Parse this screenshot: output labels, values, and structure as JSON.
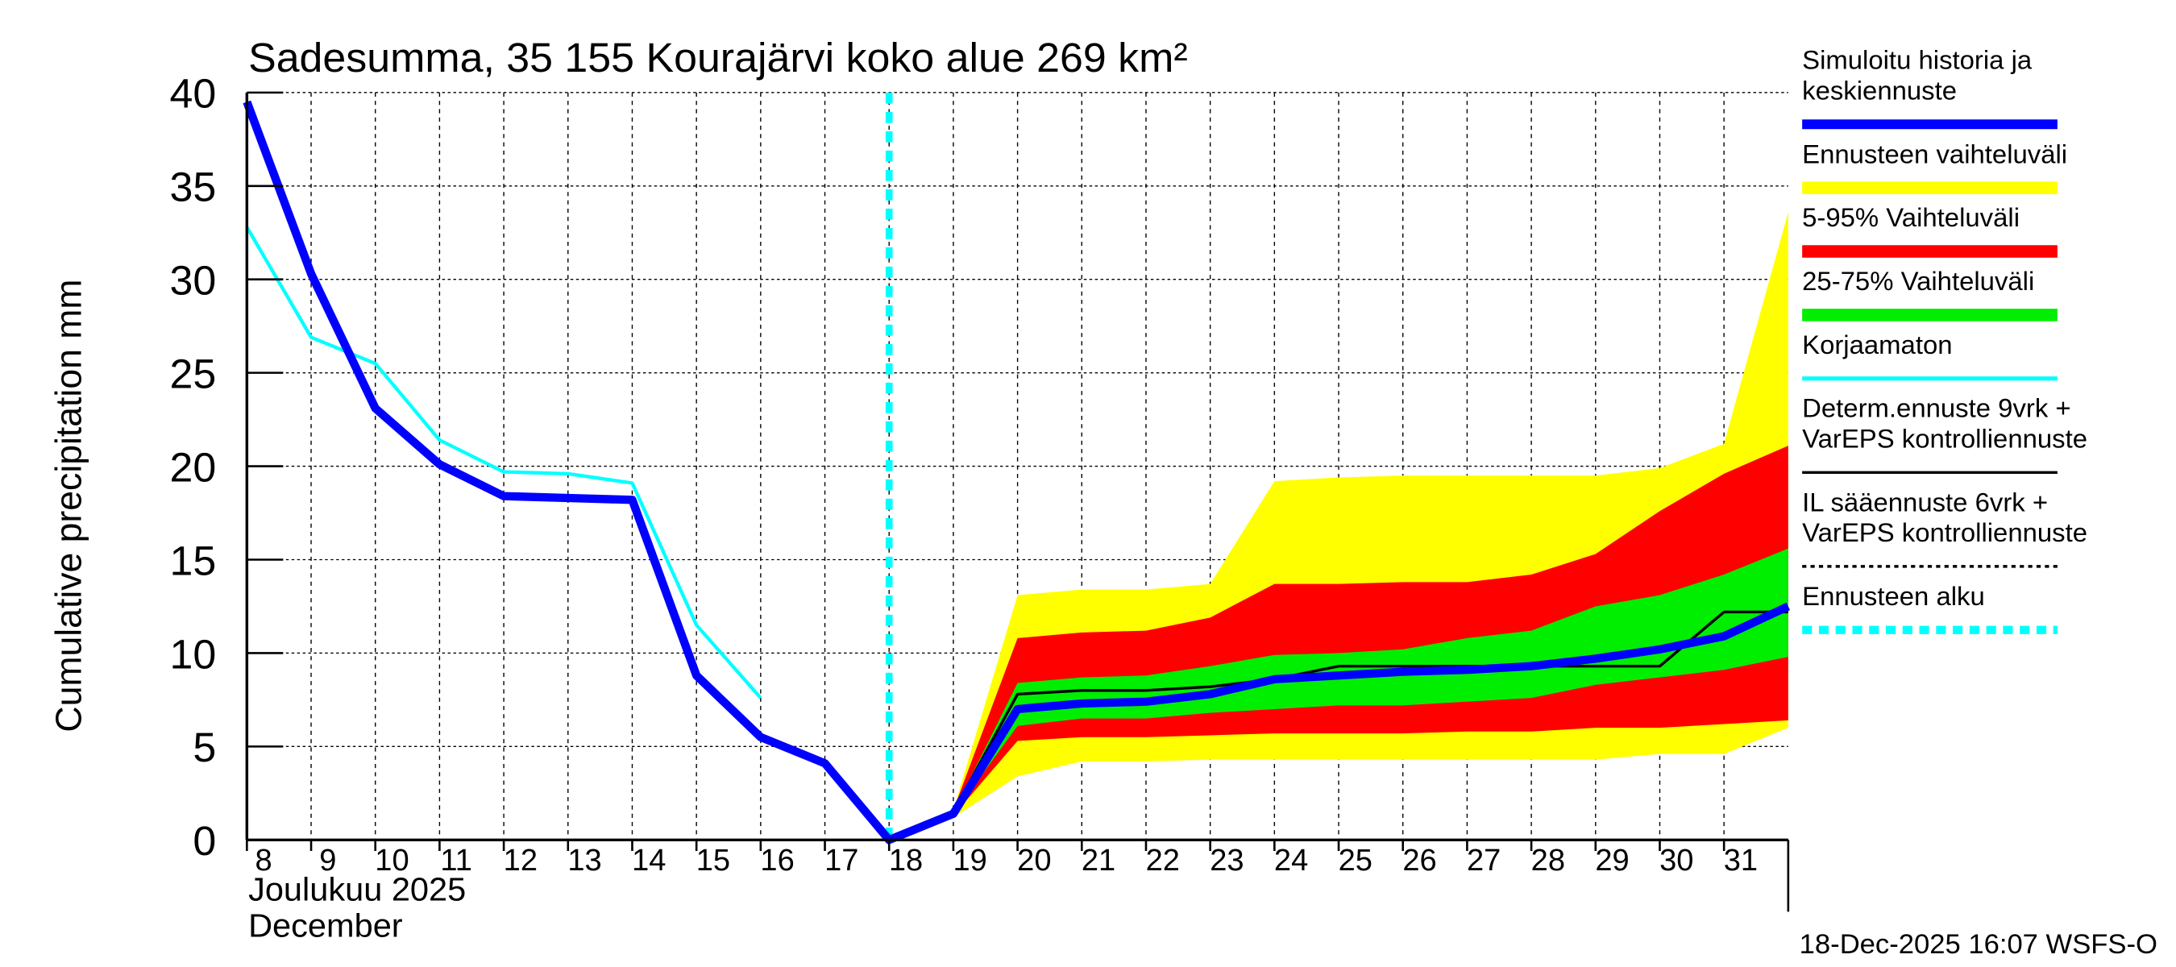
{
  "chart_data": {
    "type": "area",
    "title": "Sadesumma, 35 155 Kourajärvi koko alue 269 km²",
    "ylabel": "Cumulative precipitation   mm",
    "xlabel_lines": [
      "Joulukuu  2025",
      "December"
    ],
    "footer": "18-Dec-2025 16:07 WSFS-O",
    "ylim": [
      0,
      40
    ],
    "yticks": [
      0,
      5,
      10,
      15,
      20,
      25,
      30,
      35,
      40
    ],
    "xlim": [
      8,
      32
    ],
    "xticks": [
      8,
      9,
      10,
      11,
      12,
      13,
      14,
      15,
      16,
      17,
      18,
      19,
      20,
      21,
      22,
      23,
      24,
      25,
      26,
      27,
      28,
      29,
      30,
      31
    ],
    "forecast_start": 18,
    "colors": {
      "blue": "#0000ff",
      "yellow": "#ffff00",
      "red": "#ff0000",
      "green": "#00ee00",
      "cyan": "#00ffff",
      "black": "#000000"
    },
    "legend": [
      {
        "lines": [
          "Simuloitu historia ja",
          "keskiennuste"
        ],
        "style": "blue"
      },
      {
        "lines": [
          "Ennusteen vaihteluväli"
        ],
        "style": "yellow"
      },
      {
        "lines": [
          "5-95% Vaihteluväli"
        ],
        "style": "red"
      },
      {
        "lines": [
          "25-75% Vaihteluväli"
        ],
        "style": "green"
      },
      {
        "lines": [
          "Korjaamaton"
        ],
        "style": "cyan"
      },
      {
        "lines": [
          "Determ.ennuste 9vrk +",
          "VarEPS kontrolliennuste"
        ],
        "style": "black"
      },
      {
        "lines": [
          "IL sääennuste 6vrk  +",
          "  VarEPS kontrolliennuste"
        ],
        "style": "dashed"
      },
      {
        "lines": [
          "Ennusteen alku"
        ],
        "style": "cyandash"
      }
    ],
    "series": {
      "yellow_band": {
        "x": [
          18,
          19,
          20,
          21,
          22,
          23,
          24,
          25,
          26,
          27,
          28,
          29,
          30,
          31,
          32
        ],
        "upper": [
          0,
          1.6,
          13.1,
          13.4,
          13.4,
          13.7,
          19.2,
          19.4,
          19.5,
          19.5,
          19.5,
          19.5,
          19.9,
          21.2,
          33.6
        ],
        "lower": [
          0,
          1.2,
          3.4,
          4.2,
          4.2,
          4.3,
          4.3,
          4.3,
          4.3,
          4.3,
          4.3,
          4.3,
          4.6,
          4.6,
          6.0
        ]
      },
      "red_band": {
        "x": [
          18,
          19,
          20,
          21,
          22,
          23,
          24,
          25,
          26,
          27,
          28,
          29,
          30,
          31,
          32
        ],
        "upper": [
          0,
          1.6,
          10.8,
          11.1,
          11.2,
          11.9,
          13.7,
          13.7,
          13.8,
          13.8,
          14.2,
          15.3,
          17.6,
          19.6,
          21.1
        ],
        "lower": [
          0,
          1.3,
          5.3,
          5.5,
          5.5,
          5.6,
          5.7,
          5.7,
          5.7,
          5.8,
          5.8,
          6.0,
          6.0,
          6.2,
          6.4
        ]
      },
      "green_band": {
        "x": [
          18,
          19,
          20,
          21,
          22,
          23,
          24,
          25,
          26,
          27,
          28,
          29,
          30,
          31,
          32
        ],
        "upper": [
          0,
          1.5,
          8.4,
          8.7,
          8.8,
          9.3,
          9.9,
          10.0,
          10.2,
          10.8,
          11.2,
          12.5,
          13.1,
          14.2,
          15.6
        ],
        "lower": [
          0,
          1.4,
          6.1,
          6.5,
          6.5,
          6.8,
          7.0,
          7.2,
          7.2,
          7.4,
          7.6,
          8.3,
          8.7,
          9.1,
          9.8
        ]
      },
      "korjaamaton": {
        "x": [
          8,
          9,
          10,
          11,
          12,
          13,
          14,
          15,
          16
        ],
        "y": [
          32.8,
          26.9,
          25.5,
          21.4,
          19.7,
          19.6,
          19.1,
          11.5,
          7.6
        ]
      },
      "determ": {
        "x": [
          18,
          19,
          20,
          21,
          22,
          23,
          24,
          25,
          26,
          27,
          28,
          29,
          30,
          31,
          32
        ],
        "y": [
          0,
          1.5,
          7.8,
          8.0,
          8.0,
          8.2,
          8.6,
          9.3,
          9.3,
          9.3,
          9.3,
          9.3,
          9.3,
          12.2,
          12.2
        ]
      },
      "simulated": {
        "x": [
          8,
          9,
          10,
          11,
          12,
          13,
          14,
          15,
          16,
          17,
          18,
          19,
          20,
          21,
          22,
          23,
          24,
          25,
          26,
          27,
          28,
          29,
          30,
          31,
          32
        ],
        "y": [
          39.5,
          30.3,
          23.1,
          20.1,
          18.4,
          18.3,
          18.2,
          8.8,
          5.5,
          4.1,
          0,
          1.4,
          7.0,
          7.3,
          7.4,
          7.8,
          8.6,
          8.8,
          9.0,
          9.1,
          9.3,
          9.7,
          10.2,
          10.9,
          12.5
        ]
      }
    }
  }
}
